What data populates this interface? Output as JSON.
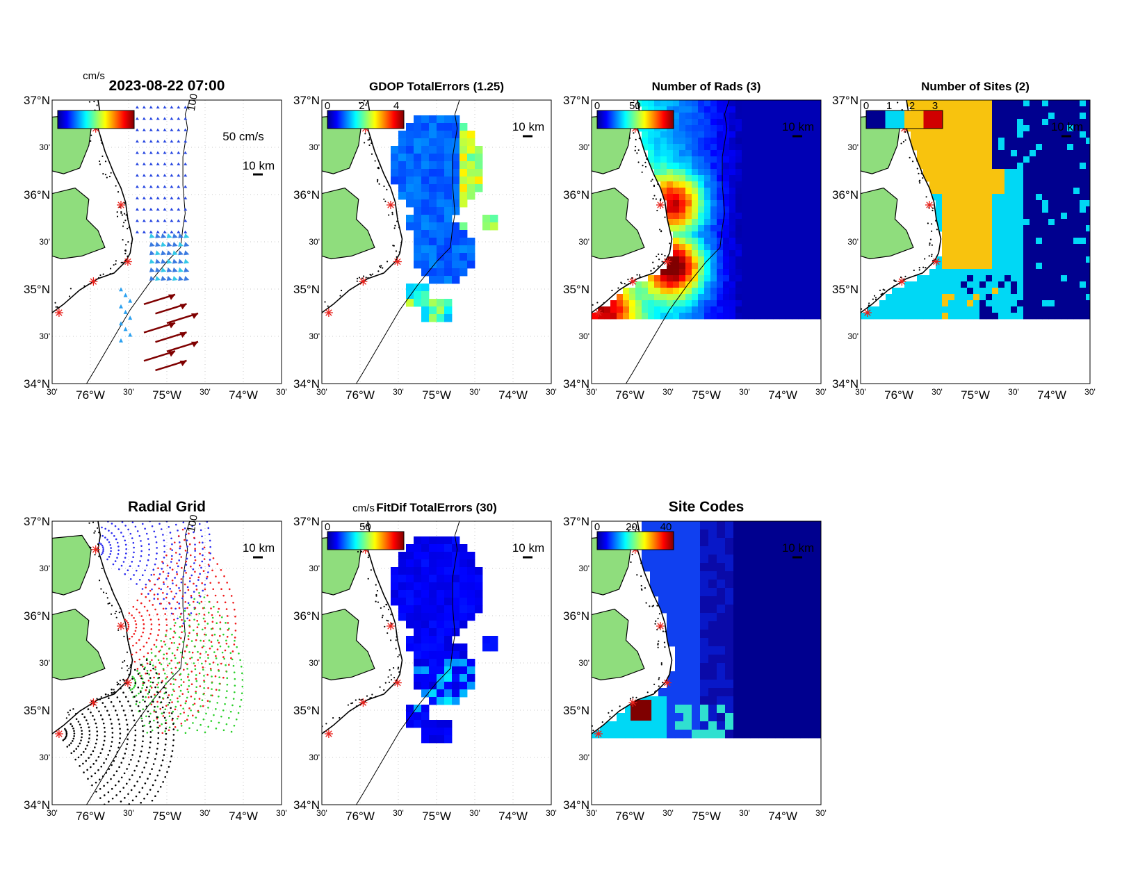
{
  "timestamp": "2023-08-22 07:00",
  "unit_cms": "cm/s",
  "vector_scale_label": "50 cm/s",
  "scale_bar_label": "10 km",
  "lat_labels": [
    "37°N",
    "30'",
    "36°N",
    "30'",
    "35°N",
    "30'",
    "34°N"
  ],
  "lon_labels": [
    "30'",
    "76°W",
    "30'",
    "75°W",
    "30'",
    "74°W",
    "30'"
  ],
  "contour_label": "100",
  "panels": [
    {
      "id": "currents",
      "title": "2023-08-22 07:00",
      "colorbar_ticks": [],
      "colorbar_unit": "cm/s"
    },
    {
      "id": "gdop",
      "title": "GDOP TotalErrors (1.25)",
      "colorbar_ticks": [
        "0",
        "2",
        "4"
      ]
    },
    {
      "id": "nrads",
      "title": "Number of Rads (3)",
      "colorbar_ticks": [
        "0",
        "50"
      ]
    },
    {
      "id": "nsites",
      "title": "Number of Sites (2)",
      "colorbar_ticks": [
        "0",
        "1",
        "2",
        "3"
      ]
    },
    {
      "id": "radgrid",
      "title": "Radial Grid",
      "colorbar_ticks": []
    },
    {
      "id": "fitdif",
      "title": "FitDif TotalErrors (30)",
      "colorbar_ticks": [
        "0",
        "50"
      ],
      "colorbar_unit": "cm/s"
    },
    {
      "id": "sitecodes",
      "title": "Site Codes",
      "colorbar_ticks": [
        "0",
        "20",
        "40"
      ]
    }
  ],
  "colors": {
    "land": "#8fdd7d",
    "site_marker": "#e8201a",
    "dark_blue": "#00008f",
    "cyan": "#00d8f5",
    "orange": "#f8c30e",
    "dark_red": "#7f0000"
  }
}
